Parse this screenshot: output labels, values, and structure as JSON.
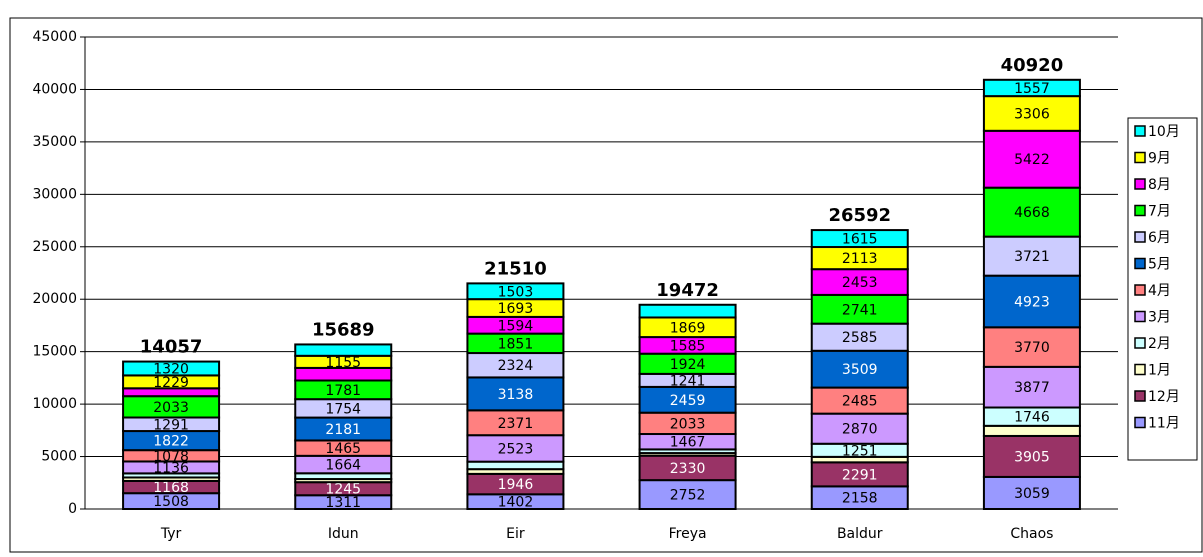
{
  "chart_data": {
    "type": "stacked_bar",
    "categories": [
      "Tyr",
      "Idun",
      "Eir",
      "Freya",
      "Baldur",
      "Chaos"
    ],
    "totals": [
      14057,
      15689,
      21510,
      19472,
      26592,
      40920
    ],
    "series": [
      {
        "name": "11月",
        "color": "#9999ff",
        "values": [
          1508,
          1311,
          1402,
          2752,
          2158,
          3059
        ],
        "value_labels": [
          "1508",
          "1311",
          "1402",
          "2752",
          "2158",
          "3059"
        ]
      },
      {
        "name": "12月",
        "color": "#993366",
        "values": [
          1168,
          1245,
          1946,
          2330,
          2291,
          3905
        ],
        "value_labels": [
          "1168",
          "1245",
          "1946",
          "2330",
          "2291",
          "3905"
        ]
      },
      {
        "name": "1月",
        "color": "#ffffcc",
        "values": [
          330,
          300,
          450,
          250,
          521,
          966
        ],
        "value_labels": [
          null,
          null,
          null,
          null,
          null,
          null
        ]
      },
      {
        "name": "2月",
        "color": "#ccffff",
        "values": [
          390,
          550,
          715,
          350,
          1251,
          1746
        ],
        "value_labels": [
          null,
          null,
          null,
          null,
          "1251",
          "1746"
        ]
      },
      {
        "name": "3月",
        "color": "#cc99ff",
        "values": [
          1136,
          1664,
          2523,
          1467,
          2870,
          3877
        ],
        "value_labels": [
          "1136",
          "1664",
          "2523",
          "1467",
          "2870",
          "3877"
        ]
      },
      {
        "name": "4月",
        "color": "#ff8080",
        "values": [
          1078,
          1465,
          2371,
          2033,
          2485,
          3770
        ],
        "value_labels": [
          "1078",
          "1465",
          "2371",
          "2033",
          "2485",
          "3770"
        ]
      },
      {
        "name": "5月",
        "color": "#0066cc",
        "values": [
          1822,
          2181,
          3138,
          2459,
          3509,
          4923
        ],
        "value_labels": [
          "1822",
          "2181",
          "3138",
          "2459",
          "3509",
          "4923"
        ]
      },
      {
        "name": "6月",
        "color": "#ccccff",
        "values": [
          1291,
          1754,
          2324,
          1241,
          2585,
          3721
        ],
        "value_labels": [
          "1291",
          "1754",
          "2324",
          "1241",
          "2585",
          "3721"
        ]
      },
      {
        "name": "7月",
        "color": "#00ff00",
        "values": [
          2033,
          1781,
          1851,
          1924,
          2741,
          4668
        ],
        "value_labels": [
          "2033",
          "1781",
          "1851",
          "1924",
          "2741",
          "4668"
        ]
      },
      {
        "name": "8月",
        "color": "#ff00ff",
        "values": [
          752,
          1200,
          1594,
          1585,
          2453,
          5422
        ],
        "value_labels": [
          null,
          null,
          "1594",
          "1585",
          "2453",
          "5422"
        ]
      },
      {
        "name": "9月",
        "color": "#ffff00",
        "values": [
          1229,
          1155,
          1693,
          1869,
          2113,
          3306
        ],
        "value_labels": [
          "1229",
          "1155",
          "1693",
          "1869",
          "2113",
          "3306"
        ]
      },
      {
        "name": "10月",
        "color": "#00ffff",
        "values": [
          1320,
          1083,
          1503,
          1212,
          1615,
          1557
        ],
        "value_labels": [
          "1320",
          null,
          "1503",
          null,
          "1615",
          "1557"
        ]
      }
    ],
    "ylim": [
      0,
      45000
    ],
    "yticks": [
      0,
      5000,
      10000,
      15000,
      20000,
      25000,
      30000,
      35000,
      40000,
      45000
    ],
    "grid": true,
    "legend": "right"
  }
}
